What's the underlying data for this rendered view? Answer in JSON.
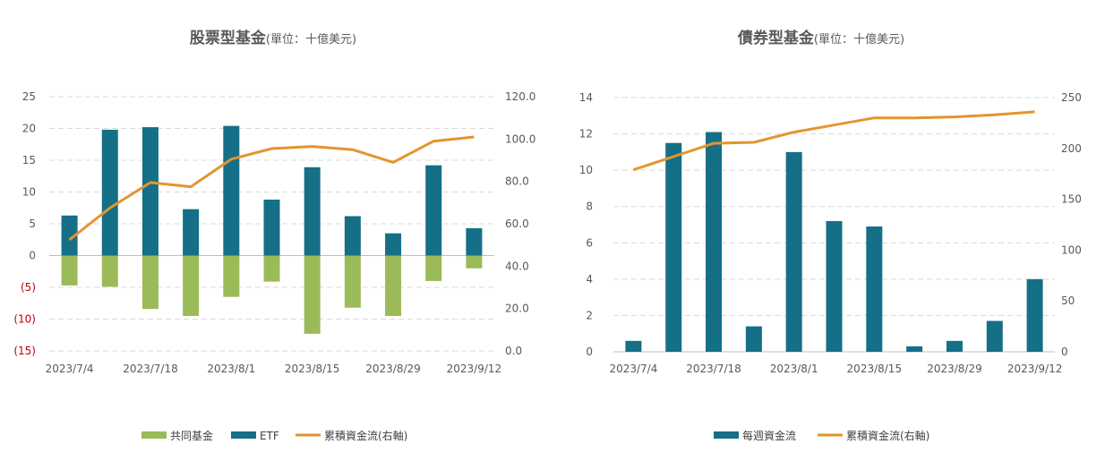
{
  "colors": {
    "fund": "#9bbb59",
    "etf": "#156f87",
    "cumulative": "#e3952e",
    "negative_tick": "#c00000"
  },
  "chart_data": [
    {
      "type": "bar",
      "title": "股票型基金",
      "title_unit": "(單位：十億美元)",
      "x_tick_labels": [
        "2023/7/4",
        "2023/7/18",
        "2023/8/1",
        "2023/8/15",
        "2023/8/29",
        "2023/9/12"
      ],
      "x_tick_every": 2,
      "n_points": 11,
      "left_axis": {
        "ylim": [
          -15,
          25
        ],
        "ticks": [
          25,
          20,
          15,
          10,
          5,
          0,
          -5,
          -10,
          -15
        ],
        "labels": [
          "25",
          "20",
          "15",
          "10",
          "5",
          "0",
          "(5)",
          "(10)",
          "(15)"
        ]
      },
      "right_axis": {
        "ylim": [
          0,
          120
        ],
        "ticks": [
          120,
          100,
          80,
          60,
          40,
          20,
          0
        ],
        "labels": [
          "120.0",
          "100.0",
          "80.0",
          "60.0",
          "40.0",
          "20.0",
          "0.0"
        ]
      },
      "series": [
        {
          "name": "共同基金",
          "kind": "bar",
          "axis": "left",
          "color_key": "fund",
          "values": [
            -4.7,
            -4.9,
            -8.4,
            -9.5,
            -6.5,
            -4.1,
            -12.3,
            -8.2,
            -9.5,
            -4.0,
            -2.0
          ]
        },
        {
          "name": "ETF",
          "kind": "bar",
          "axis": "left",
          "color_key": "etf",
          "values": [
            6.3,
            19.8,
            20.2,
            7.3,
            20.4,
            8.8,
            13.9,
            6.2,
            3.5,
            14.2,
            4.3
          ]
        },
        {
          "name": "累積資金流(右軸)",
          "kind": "line",
          "axis": "right",
          "color_key": "cumulative",
          "values": [
            52.5,
            67.5,
            79.5,
            77.5,
            90.5,
            95.5,
            96.5,
            95.0,
            89.0,
            99.0,
            101.0
          ]
        }
      ],
      "legend_position": "bottom"
    },
    {
      "type": "bar",
      "title": "債券型基金",
      "title_unit": "(單位：十億美元)",
      "x_tick_labels": [
        "2023/7/4",
        "2023/7/18",
        "2023/8/1",
        "2023/8/15",
        "2023/8/29",
        "2023/9/12"
      ],
      "x_tick_every": 2,
      "n_points": 11,
      "left_axis": {
        "ylim": [
          0,
          14
        ],
        "ticks": [
          14,
          12,
          10,
          8,
          6,
          4,
          2,
          0
        ],
        "labels": [
          "14",
          "12",
          "10",
          "8",
          "6",
          "4",
          "2",
          "0"
        ]
      },
      "right_axis": {
        "ylim": [
          0,
          250
        ],
        "ticks": [
          250,
          200,
          150,
          100,
          50,
          0
        ],
        "labels": [
          "250",
          "200",
          "150",
          "100",
          "50",
          "0"
        ]
      },
      "series": [
        {
          "name": "每週資金流",
          "kind": "bar",
          "axis": "left",
          "color_key": "etf",
          "values": [
            0.6,
            11.5,
            12.1,
            1.4,
            11.0,
            7.2,
            6.9,
            0.3,
            0.6,
            1.7,
            4.0
          ]
        },
        {
          "name": "累積資金流(右軸)",
          "kind": "line",
          "axis": "right",
          "color_key": "cumulative",
          "values": [
            179,
            192,
            205,
            206,
            216,
            223,
            230,
            230,
            231,
            233,
            236
          ]
        }
      ],
      "legend_position": "bottom"
    }
  ]
}
